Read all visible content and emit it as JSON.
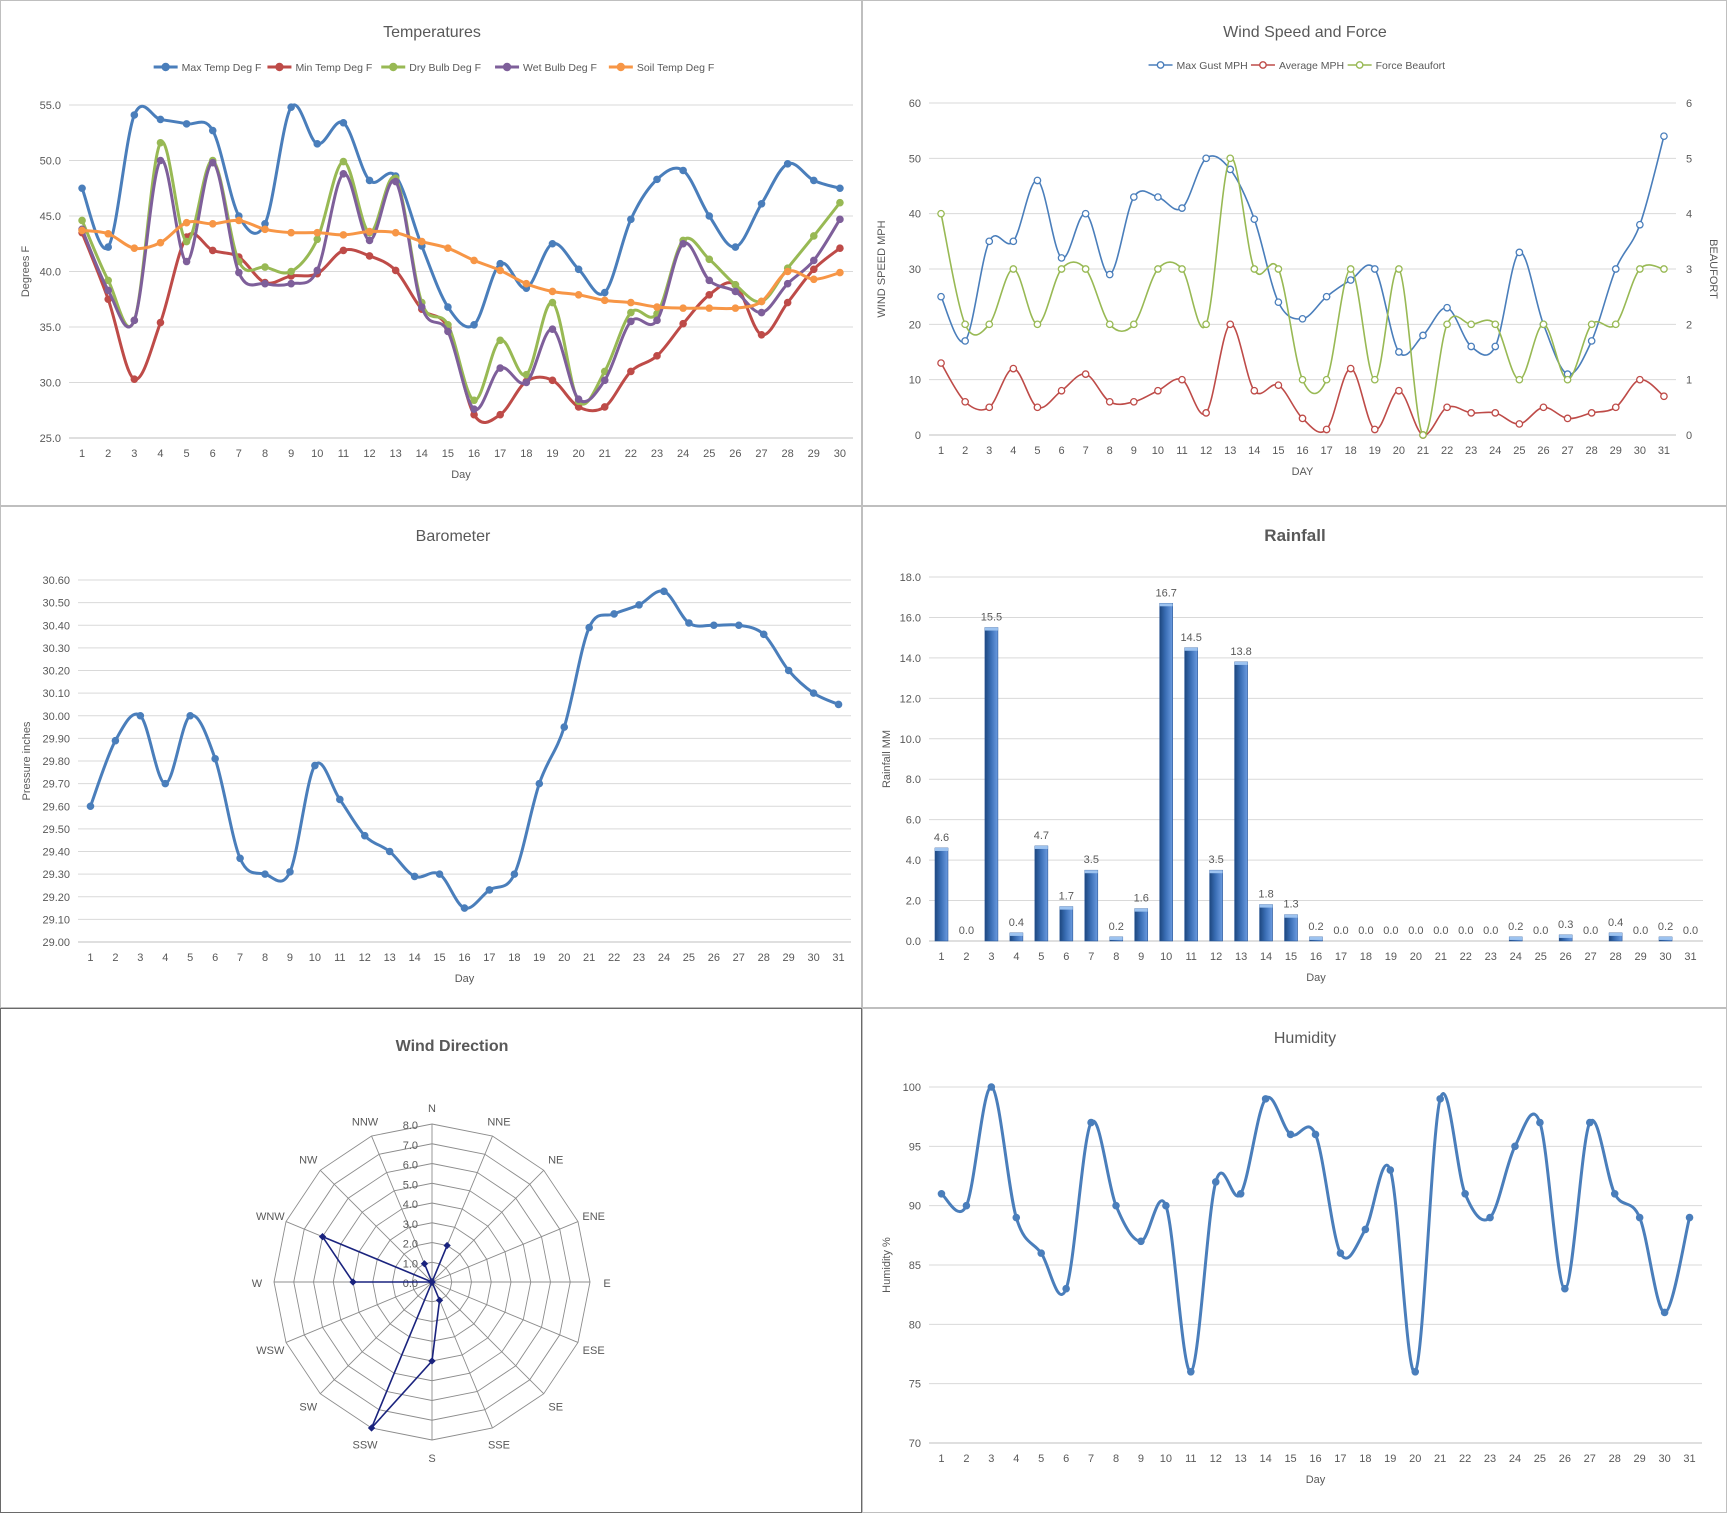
{
  "chart_data": [
    {
      "id": "temperatures",
      "type": "line",
      "title": "Temperatures",
      "xlabel": "Day",
      "ylabel": "Degrees F",
      "x": [
        1,
        2,
        3,
        4,
        5,
        6,
        7,
        8,
        9,
        10,
        11,
        12,
        13,
        14,
        15,
        16,
        17,
        18,
        19,
        20,
        21,
        22,
        23,
        24,
        25,
        26,
        27,
        28,
        29,
        30
      ],
      "ylim": [
        25,
        55
      ],
      "yticks": [
        "25.0",
        "30.0",
        "35.0",
        "40.0",
        "45.0",
        "50.0",
        "55.0"
      ],
      "grid": true,
      "legend": "top",
      "series": [
        {
          "name": "Max Temp Deg F",
          "color": "#4a7ebb",
          "values": [
            47.5,
            42.2,
            54.1,
            53.7,
            53.3,
            52.7,
            45.0,
            44.3,
            54.8,
            51.5,
            53.4,
            48.2,
            48.6,
            42.3,
            36.8,
            35.2,
            40.7,
            38.5,
            42.5,
            40.2,
            38.1,
            44.7,
            48.3,
            49.1,
            45.0,
            42.2,
            46.1,
            49.7,
            48.2,
            47.5
          ]
        },
        {
          "name": "Min Temp Deg F",
          "color": "#be4b48",
          "values": [
            43.5,
            37.5,
            30.3,
            35.4,
            43.1,
            41.9,
            41.3,
            39.0,
            39.6,
            39.8,
            41.9,
            41.4,
            40.1,
            36.6,
            34.9,
            27.1,
            27.1,
            30.1,
            30.2,
            27.8,
            27.8,
            31.0,
            32.4,
            35.3,
            37.9,
            38.8,
            34.3,
            37.2,
            40.2,
            42.1
          ]
        },
        {
          "name": "Dry Bulb Deg F",
          "color": "#98b954",
          "values": [
            44.6,
            39.2,
            35.6,
            51.6,
            42.7,
            50.0,
            40.9,
            40.4,
            40.0,
            42.9,
            49.9,
            43.5,
            48.4,
            37.2,
            35.2,
            28.4,
            33.8,
            30.7,
            37.2,
            28.3,
            31.0,
            36.3,
            36.2,
            42.8,
            41.1,
            38.8,
            37.3,
            40.3,
            43.2,
            46.2
          ]
        },
        {
          "name": "Wet Bulb Deg F",
          "color": "#7e5f9a",
          "values": [
            43.8,
            38.3,
            35.6,
            50.0,
            40.9,
            49.8,
            39.9,
            38.9,
            38.9,
            40.1,
            48.8,
            42.8,
            48.1,
            36.8,
            34.6,
            27.6,
            31.3,
            30.0,
            34.8,
            28.5,
            30.2,
            35.5,
            35.6,
            42.5,
            39.2,
            38.2,
            36.3,
            38.9,
            41.0,
            44.7
          ]
        },
        {
          "name": "Soil Temp Deg F",
          "color": "#f79646",
          "values": [
            43.7,
            43.4,
            42.1,
            42.6,
            44.4,
            44.3,
            44.6,
            43.8,
            43.5,
            43.5,
            43.3,
            43.6,
            43.5,
            42.7,
            42.1,
            41.0,
            40.1,
            38.9,
            38.2,
            37.9,
            37.4,
            37.2,
            36.8,
            36.7,
            36.7,
            36.7,
            37.3,
            40.0,
            39.3,
            39.9
          ]
        }
      ]
    },
    {
      "id": "wind",
      "type": "line",
      "title": "Wind Speed and Force",
      "xlabel": "DAY",
      "ylabel": "WIND SPEED MPH",
      "y2label": "BEAUFORT",
      "x": [
        1,
        2,
        3,
        4,
        5,
        6,
        7,
        8,
        9,
        10,
        11,
        12,
        13,
        14,
        15,
        16,
        17,
        18,
        19,
        20,
        21,
        22,
        23,
        24,
        25,
        26,
        27,
        28,
        29,
        30,
        31
      ],
      "ylim": [
        0,
        60
      ],
      "yticks": [
        "0",
        "10",
        "20",
        "30",
        "40",
        "50",
        "60"
      ],
      "y2lim": [
        0,
        6
      ],
      "y2ticks": [
        "0",
        "1",
        "2",
        "3",
        "4",
        "5",
        "6"
      ],
      "grid": true,
      "legend": "top",
      "series": [
        {
          "name": "Max Gust MPH",
          "color": "#4a7ebb",
          "axis": "left",
          "values": [
            25,
            17,
            35,
            35,
            46,
            32,
            40,
            29,
            43,
            43,
            41,
            50,
            48,
            39,
            24,
            21,
            25,
            28,
            30,
            15,
            18,
            23,
            16,
            16,
            33,
            20,
            11,
            17,
            30,
            38,
            54
          ]
        },
        {
          "name": "Average MPH",
          "color": "#be4b48",
          "axis": "left",
          "values": [
            13,
            6,
            5,
            12,
            5,
            8,
            11,
            6,
            6,
            8,
            10,
            4,
            20,
            8,
            9,
            3,
            1,
            12,
            1,
            8,
            0,
            5,
            4,
            4,
            2,
            5,
            3,
            4,
            5,
            10,
            7
          ]
        },
        {
          "name": "Force Beaufort",
          "color": "#98b954",
          "axis": "right",
          "values": [
            4,
            2,
            2,
            3,
            2,
            3,
            3,
            2,
            2,
            3,
            3,
            2,
            5,
            3,
            3,
            1,
            1,
            3,
            1,
            3,
            0,
            2,
            2,
            2,
            1,
            2,
            1,
            2,
            2,
            3,
            3
          ]
        }
      ]
    },
    {
      "id": "barometer",
      "type": "line",
      "title": "Barometer",
      "xlabel": "Day",
      "ylabel": "Pressure inches",
      "x": [
        1,
        2,
        3,
        4,
        5,
        6,
        7,
        8,
        9,
        10,
        11,
        12,
        13,
        14,
        15,
        16,
        17,
        18,
        19,
        20,
        21,
        22,
        23,
        24,
        25,
        26,
        27,
        28,
        29,
        30,
        31
      ],
      "ylim": [
        29.0,
        30.6
      ],
      "yticks": [
        "29.00",
        "29.10",
        "29.20",
        "29.30",
        "29.40",
        "29.50",
        "29.60",
        "29.70",
        "29.80",
        "29.90",
        "30.00",
        "30.10",
        "30.20",
        "30.30",
        "30.40",
        "30.50",
        "30.60"
      ],
      "grid": true,
      "series": [
        {
          "name": "",
          "color": "#4a7ebb",
          "values": [
            29.6,
            29.89,
            30.0,
            29.7,
            30.0,
            29.81,
            29.37,
            29.3,
            29.31,
            29.78,
            29.63,
            29.47,
            29.4,
            29.29,
            29.3,
            29.15,
            29.23,
            29.3,
            29.7,
            29.95,
            30.39,
            30.45,
            30.49,
            30.55,
            30.41,
            30.4,
            30.4,
            30.36,
            30.2,
            30.1,
            30.05
          ]
        }
      ]
    },
    {
      "id": "rainfall",
      "type": "bar",
      "title": "Rainfall",
      "xlabel": "Day",
      "ylabel": "Rainfall MM",
      "categories": [
        "1",
        "2",
        "3",
        "4",
        "5",
        "6",
        "7",
        "8",
        "9",
        "10",
        "11",
        "12",
        "13",
        "14",
        "15",
        "16",
        "17",
        "18",
        "19",
        "20",
        "21",
        "22",
        "23",
        "24",
        "25",
        "26",
        "27",
        "28",
        "29",
        "30",
        "31"
      ],
      "values": [
        4.6,
        0.0,
        15.5,
        0.4,
        4.7,
        1.7,
        3.5,
        0.2,
        1.6,
        16.7,
        14.5,
        3.5,
        13.8,
        1.8,
        1.3,
        0.2,
        0.0,
        0.0,
        0.0,
        0.0,
        0.0,
        0.0,
        0.0,
        0.2,
        0.0,
        0.3,
        0.0,
        0.4,
        0.0,
        0.2,
        0.0
      ],
      "data_labels": [
        "4.6",
        "0.0",
        "15.5",
        "0.4",
        "4.7",
        "1.7",
        "3.5",
        "0.2",
        "1.6",
        "16.7",
        "14.5",
        "3.5",
        "13.8",
        "1.8",
        "1.3",
        "0.2",
        "0.0",
        "0.0",
        "0.0",
        "0.0",
        "0.0",
        "0.0",
        "0.0",
        "0.2",
        "0.0",
        "0.3",
        "0.0",
        "0.4",
        "0.0",
        "0.2",
        "0.0"
      ],
      "ylim": [
        0,
        18
      ],
      "yticks": [
        "0.0",
        "2.0",
        "4.0",
        "6.0",
        "8.0",
        "10.0",
        "12.0",
        "14.0",
        "16.0",
        "18.0"
      ],
      "grid": true,
      "color": "#3a6eb5"
    },
    {
      "id": "winddir",
      "type": "radar",
      "title": "Wind Direction",
      "categories": [
        "N",
        "NNE",
        "NE",
        "ENE",
        "E",
        "ESE",
        "SE",
        "SSE",
        "S",
        "SSW",
        "SW",
        "WSW",
        "W",
        "WNW",
        "NW",
        "NNW"
      ],
      "values": [
        0,
        2,
        0,
        0,
        0,
        0,
        0,
        1,
        4,
        8,
        0,
        0,
        4,
        6,
        0,
        1
      ],
      "rlim": [
        0,
        8
      ],
      "rticks": [
        "0.0",
        "1.0",
        "2.0",
        "3.0",
        "4.0",
        "5.0",
        "6.0",
        "7.0",
        "8.0"
      ],
      "color": "#1a237e"
    },
    {
      "id": "humidity",
      "type": "line",
      "title": "Humidity",
      "xlabel": "Day",
      "ylabel": "Humidity %",
      "x": [
        1,
        2,
        3,
        4,
        5,
        6,
        7,
        8,
        9,
        10,
        11,
        12,
        13,
        14,
        15,
        16,
        17,
        18,
        19,
        20,
        21,
        22,
        23,
        24,
        25,
        26,
        27,
        28,
        29,
        30,
        31
      ],
      "ylim": [
        70,
        100
      ],
      "yticks": [
        "70",
        "75",
        "80",
        "85",
        "90",
        "95",
        "100"
      ],
      "grid": true,
      "series": [
        {
          "name": "",
          "color": "#4a7ebb",
          "values": [
            91,
            90,
            100,
            89,
            86,
            83,
            97,
            90,
            87,
            90,
            76,
            92,
            91,
            99,
            96,
            96,
            86,
            88,
            93,
            76,
            99,
            91,
            89,
            95,
            97,
            83,
            97,
            91,
            89,
            81,
            89
          ]
        }
      ]
    }
  ]
}
